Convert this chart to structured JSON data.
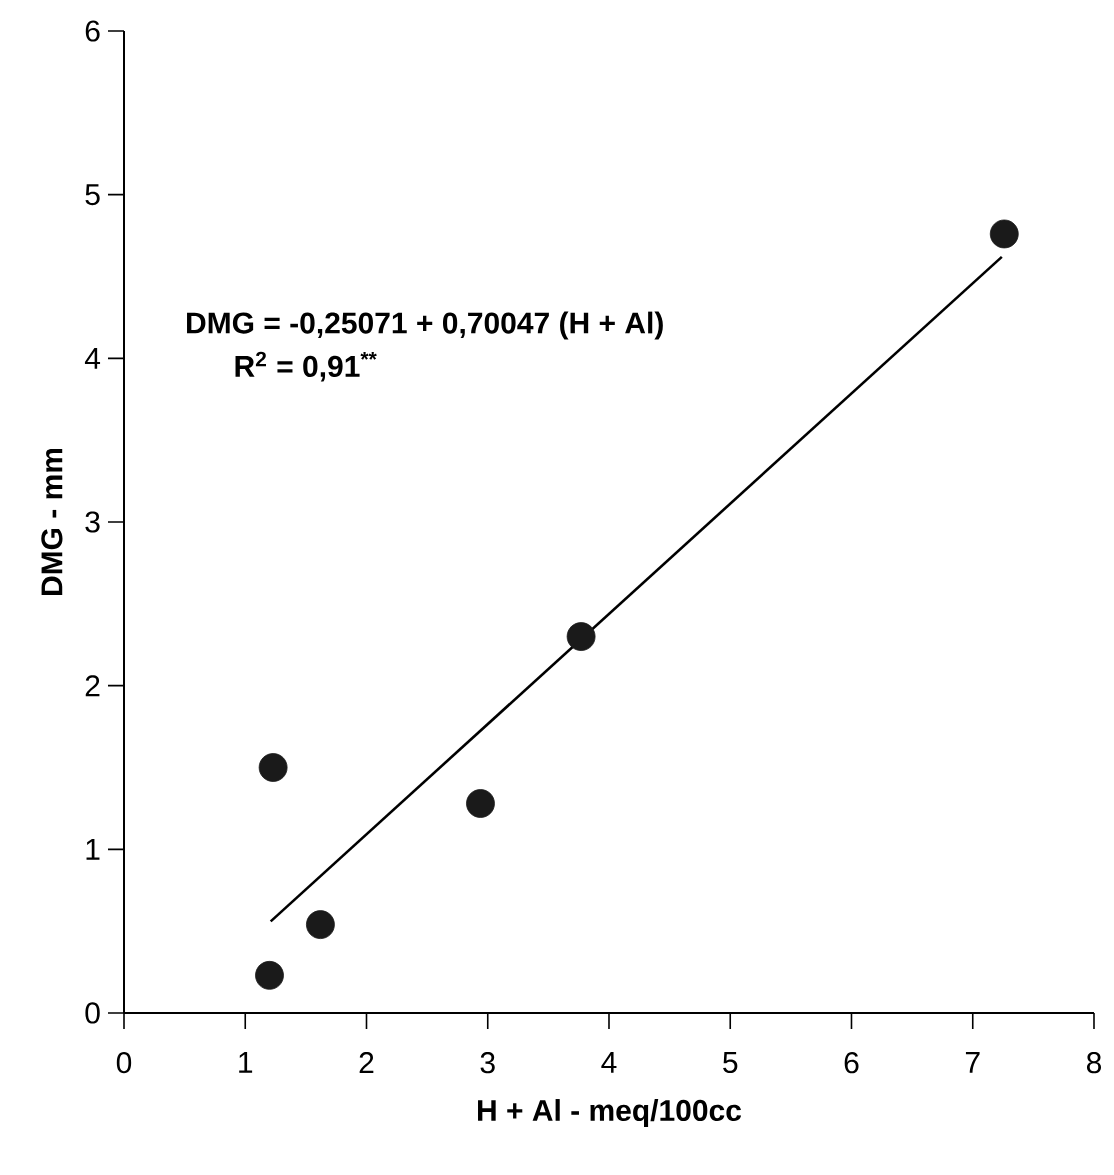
{
  "chart_data": {
    "type": "scatter",
    "xlabel": "H + Al - meq/100cc",
    "ylabel": "DMG - mm",
    "annotations": [
      "DMG = -0,25071 + 0,70047 (H + Al)",
      "R$^{2}$ = 0,91$^{**}$"
    ],
    "xlim": [
      0,
      8
    ],
    "xticks": [
      0,
      1,
      2,
      3,
      4,
      5,
      6,
      7,
      8
    ],
    "ylim": [
      0,
      6
    ],
    "yticks": [
      0,
      1,
      2,
      3,
      4,
      5,
      6
    ],
    "grid": false,
    "marker": "circle",
    "series": [
      {
        "color": "#1a1a1a",
        "x": [
          1.2,
          1.23,
          1.62,
          2.94,
          3.77,
          7.26
        ],
        "values": [
          0.23,
          1.5,
          0.54,
          1.28,
          2.3,
          4.76
        ]
      },
      {
        "type": "line",
        "color": "#000000",
        "marker": "none",
        "x": [
          1.21,
          7.24
        ],
        "values": [
          0.56,
          4.62
        ]
      }
    ]
  }
}
